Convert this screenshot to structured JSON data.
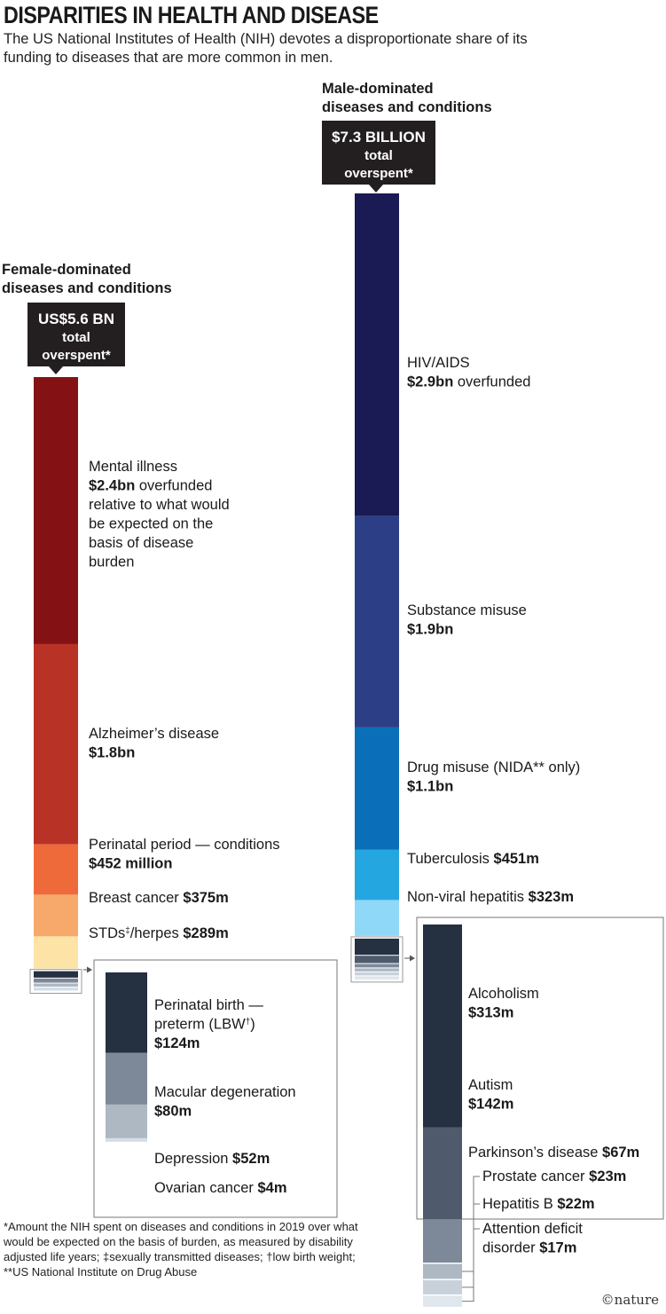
{
  "title": "DISPARITIES IN HEALTH AND DISEASE",
  "subtitle": "The US National Institutes of Health (NIH) devotes a disproportionate share of its funding to diseases that are more common in men.",
  "footnotes": [
    "*Amount the NIH spent on diseases and conditions in 2019 over what",
    "would be expected on the basis of burden, as measured by disability",
    "adjusted life years; ‡sexually transmitted diseases; †low birth weight;",
    "**US National Institute on Drug Abuse"
  ],
  "credit": "©nature",
  "chart_data": {
    "type": "stacked-bar",
    "unit": "US$ millions overspent",
    "groups": [
      {
        "id": "female",
        "heading": [
          "Female-dominated",
          "diseases and conditions"
        ],
        "total_label": [
          "US$5.6 BN",
          "total",
          "overspent*"
        ],
        "segments": [
          {
            "name": "Mental illness",
            "value": 2400,
            "color": "#841215",
            "label_lines": [
              [
                {
                  "t": "Mental illness"
                }
              ],
              [
                {
                  "t": "$2.4bn",
                  "b": true
                },
                {
                  "t": " overfunded"
                }
              ],
              [
                {
                  "t": "relative to what would"
                }
              ],
              [
                {
                  "t": "be expected on the"
                }
              ],
              [
                {
                  "t": "basis of disease"
                }
              ],
              [
                {
                  "t": "burden"
                }
              ]
            ]
          },
          {
            "name": "Alzheimer’s disease",
            "value": 1800,
            "color": "#b83225",
            "label_lines": [
              [
                {
                  "t": "Alzheimer’s disease"
                }
              ],
              [
                {
                  "t": "$1.8bn",
                  "b": true
                }
              ]
            ]
          },
          {
            "name": "Perinatal period — conditions",
            "value": 452,
            "color": "#ef6a3a",
            "label_lines": [
              [
                {
                  "t": "Perinatal period — conditions"
                }
              ],
              [
                {
                  "t": "$452 million",
                  "b": true
                }
              ]
            ]
          },
          {
            "name": "Breast cancer",
            "value": 375,
            "color": "#f7a86b",
            "label_lines": [
              [
                {
                  "t": "Breast cancer "
                },
                {
                  "t": "$375m",
                  "b": true
                }
              ]
            ]
          },
          {
            "name": "STDs‡/herpes",
            "value": 289,
            "color": "#fde3a6",
            "label_lines": [
              [
                {
                  "t": "STDs"
                },
                {
                  "t": "‡",
                  "sup": true
                },
                {
                  "t": "/herpes "
                },
                {
                  "t": "$289m",
                  "b": true
                }
              ]
            ]
          }
        ],
        "inset": [
          {
            "name": "Perinatal birth — preterm (LBW†)",
            "value": 124,
            "color": "#253041",
            "label_lines": [
              [
                {
                  "t": "Perinatal birth —"
                }
              ],
              [
                {
                  "t": "preterm (LBW"
                },
                {
                  "t": "†",
                  "sup": true
                },
                {
                  "t": ")"
                }
              ],
              [
                {
                  "t": "$124m",
                  "b": true
                }
              ]
            ]
          },
          {
            "name": "Macular degeneration",
            "value": 80,
            "color": "#7d8898",
            "label_lines": [
              [
                {
                  "t": "Macular degeneration"
                }
              ],
              [
                {
                  "t": "$80m",
                  "b": true
                }
              ]
            ]
          },
          {
            "name": "Depression",
            "value": 52,
            "color": "#aeb8c3",
            "label_lines": [
              [
                {
                  "t": "Depression "
                },
                {
                  "t": "$52m",
                  "b": true
                }
              ]
            ]
          },
          {
            "name": "Ovarian cancer",
            "value": 4,
            "color": "#d5dee6",
            "label_lines": [
              [
                {
                  "t": "Ovarian cancer "
                },
                {
                  "t": "$4m",
                  "b": true
                }
              ]
            ]
          }
        ]
      },
      {
        "id": "male",
        "heading": [
          "Male-dominated",
          "diseases and conditions"
        ],
        "total_label": [
          "$7.3 BILLION",
          "total",
          "overspent*"
        ],
        "segments": [
          {
            "name": "HIV/AIDS",
            "value": 2900,
            "color": "#1a1a54",
            "label_lines": [
              [
                {
                  "t": "HIV/AIDS"
                }
              ],
              [
                {
                  "t": "$2.9bn",
                  "b": true
                },
                {
                  "t": " overfunded"
                }
              ]
            ]
          },
          {
            "name": "Substance misuse",
            "value": 1900,
            "color": "#2c3f86",
            "label_lines": [
              [
                {
                  "t": "Substance misuse"
                }
              ],
              [
                {
                  "t": "$1.9bn",
                  "b": true
                }
              ]
            ]
          },
          {
            "name": "Drug misuse (NIDA** only)",
            "value": 1100,
            "color": "#0a6fb8",
            "label_lines": [
              [
                {
                  "t": "Drug misuse (NIDA** only)"
                }
              ],
              [
                {
                  "t": "$1.1bn",
                  "b": true
                }
              ]
            ]
          },
          {
            "name": "Tuberculosis",
            "value": 451,
            "color": "#24a7e0",
            "label_lines": [
              [
                {
                  "t": "Tuberculosis "
                },
                {
                  "t": "$451m",
                  "b": true
                }
              ]
            ]
          },
          {
            "name": "Non-viral hepatitis",
            "value": 323,
            "color": "#8fd8f7",
            "label_lines": [
              [
                {
                  "t": "Non-viral hepatitis "
                },
                {
                  "t": "$323m",
                  "b": true
                }
              ]
            ]
          }
        ],
        "inset": [
          {
            "name": "Alcoholism",
            "value": 313,
            "color": "#253041",
            "label_lines": [
              [
                {
                  "t": "Alcoholism"
                }
              ],
              [
                {
                  "t": "$313m",
                  "b": true
                }
              ]
            ]
          },
          {
            "name": "Autism",
            "value": 142,
            "color": "#4f5b6c",
            "label_lines": [
              [
                {
                  "t": "Autism"
                }
              ],
              [
                {
                  "t": "$142m",
                  "b": true
                }
              ]
            ]
          },
          {
            "name": "Parkinson’s disease",
            "value": 67,
            "color": "#7d8898",
            "label_lines": [
              [
                {
                  "t": "Parkinson’s disease "
                },
                {
                  "t": "$67m",
                  "b": true
                }
              ]
            ]
          },
          {
            "name": "Prostate cancer",
            "value": 23,
            "color": "#aeb8c3",
            "label_lines": [
              [
                {
                  "t": "Prostate cancer "
                },
                {
                  "t": "$23m",
                  "b": true
                }
              ]
            ]
          },
          {
            "name": "Hepatitis B",
            "value": 22,
            "color": "#c8d1da",
            "label_lines": [
              [
                {
                  "t": "Hepatitis B "
                },
                {
                  "t": "$22m",
                  "b": true
                }
              ]
            ]
          },
          {
            "name": "Attention deficit disorder",
            "value": 17,
            "color": "#dfe6ec",
            "label_lines": [
              [
                {
                  "t": "Attention deficit"
                }
              ],
              [
                {
                  "t": "disorder "
                },
                {
                  "t": "$17m",
                  "b": true
                }
              ]
            ]
          }
        ]
      }
    ]
  }
}
